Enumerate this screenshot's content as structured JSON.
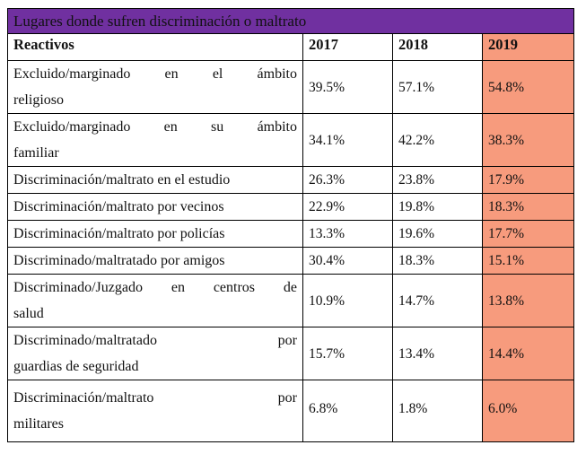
{
  "title": "Lugares donde sufren discriminación o maltrato",
  "header": {
    "label": "Reactivos",
    "years": [
      "2017",
      "2018",
      "2019"
    ]
  },
  "highlight_color": "#f79b7d",
  "title_color": "#7030a0",
  "rows": [
    {
      "line1": "Excluido/marginado en el ámbito",
      "line2": "religioso",
      "v2017": "39.5%",
      "v2018": "57.1%",
      "v2019": "54.8%"
    },
    {
      "line1": "Excluido/marginado en su ámbito",
      "line2": "familiar",
      "v2017": "34.1%",
      "v2018": "42.2%",
      "v2019": "38.3%"
    },
    {
      "line1": "Discriminación/maltrato en el estudio",
      "v2017": "26.3%",
      "v2018": "23.8%",
      "v2019": "17.9%"
    },
    {
      "line1": "Discriminación/maltrato por vecinos",
      "v2017": "22.9%",
      "v2018": "19.8%",
      "v2019": "18.3%"
    },
    {
      "line1": "Discriminación/maltrato por policías",
      "v2017": "13.3%",
      "v2018": "19.6%",
      "v2019": "17.7%"
    },
    {
      "line1": "Discriminado/maltratado por amigos",
      "v2017": "30.4%",
      "v2018": "18.3%",
      "v2019": "15.1%"
    },
    {
      "line1": "Discriminado/Juzgado en centros de",
      "line2": "salud",
      "v2017": "10.9%",
      "v2018": "14.7%",
      "v2019": "13.8%"
    },
    {
      "line1": "Discriminado/maltratado por",
      "line2": "guardias de seguridad",
      "v2017": "15.7%",
      "v2018": "13.4%",
      "v2019": "14.4%"
    },
    {
      "line1": "Discriminación/maltrato por",
      "line2": "militares",
      "v2017": "6.8%",
      "v2018": "1.8%",
      "v2019": "6.0%"
    }
  ]
}
